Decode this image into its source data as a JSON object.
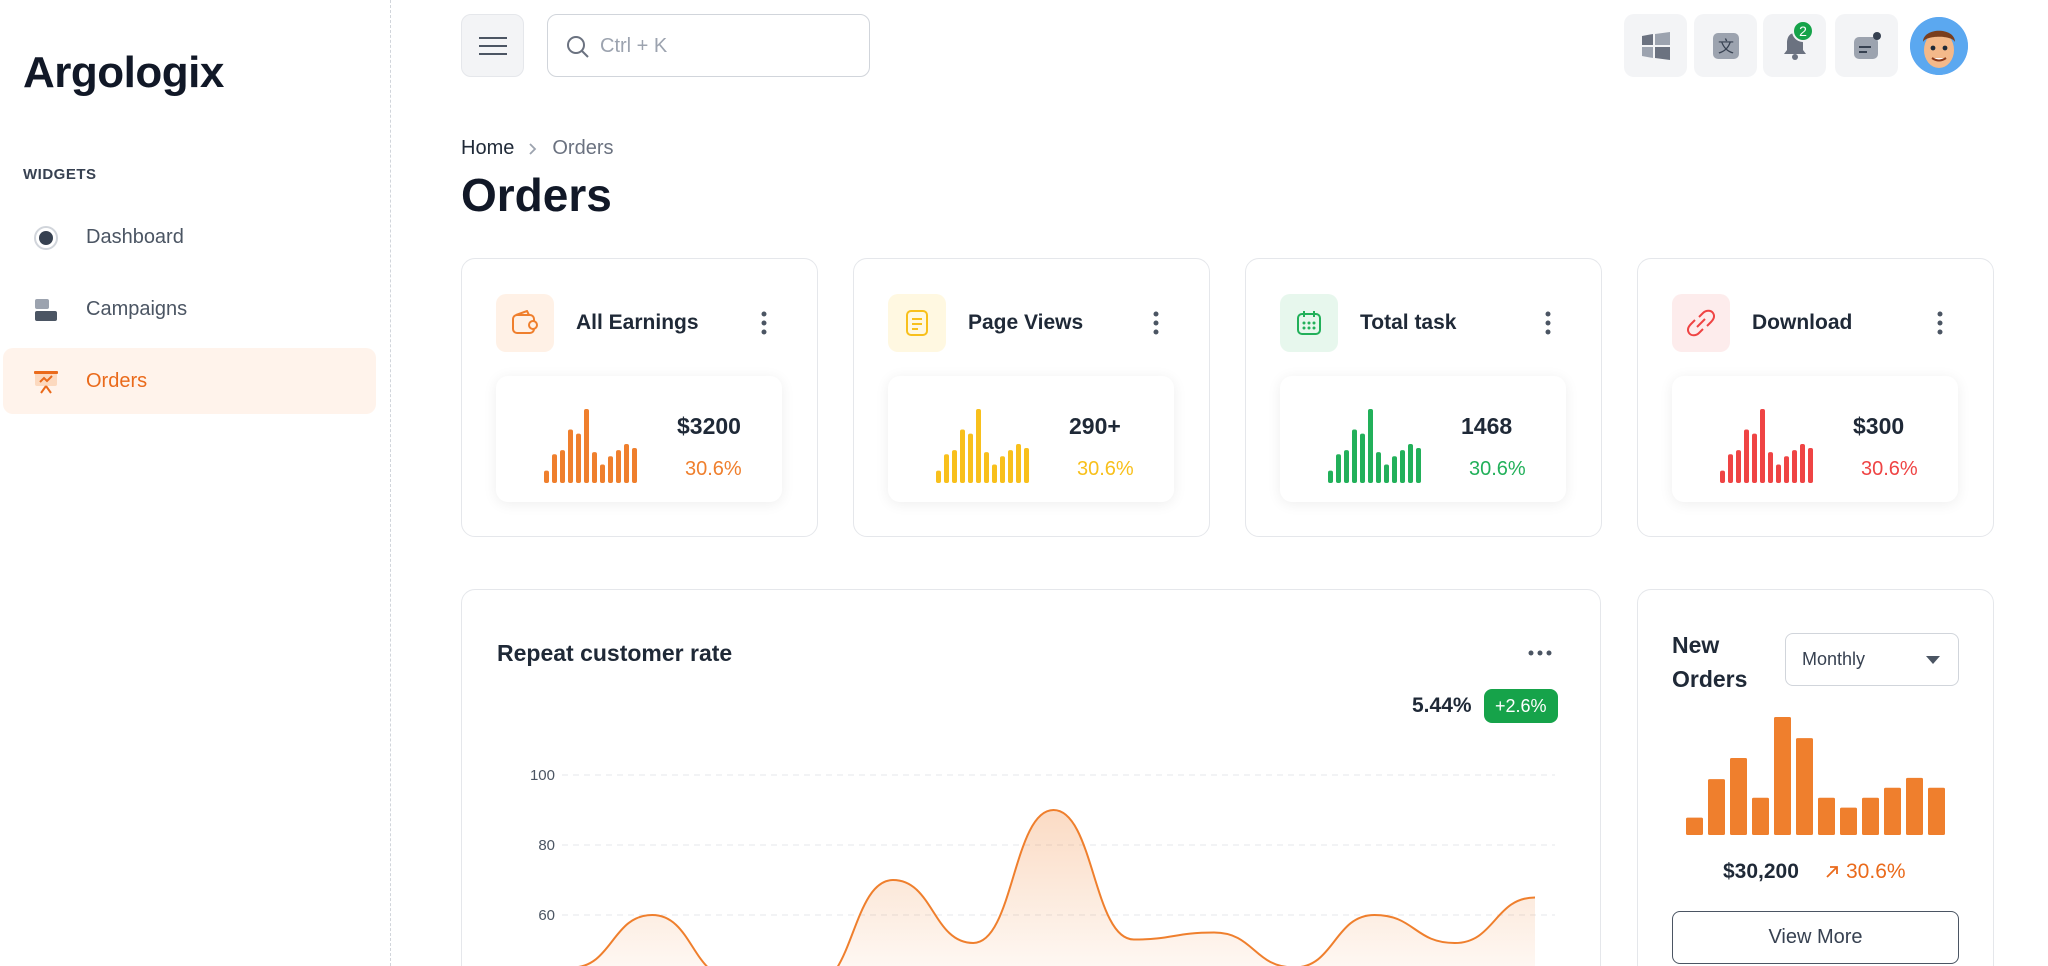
{
  "brand": {
    "name": "Argologix"
  },
  "sidebar": {
    "section": "WIDGETS",
    "items": [
      {
        "label": "Dashboard",
        "icon": "radio-icon",
        "active": false
      },
      {
        "label": "Campaigns",
        "icon": "layers-icon",
        "active": false
      },
      {
        "label": "Orders",
        "icon": "presentation-icon",
        "active": true
      }
    ]
  },
  "topbar": {
    "search_placeholder": "Ctrl + K",
    "notification_count": "2",
    "icons": [
      "windows-icon",
      "translate-icon",
      "bell-icon",
      "message-icon",
      "avatar"
    ]
  },
  "breadcrumb": {
    "home": "Home",
    "current": "Orders"
  },
  "page": {
    "title": "Orders"
  },
  "stats": [
    {
      "title": "All Earnings",
      "value": "$3200",
      "pct": "30.6%",
      "color": "#ef7f2d",
      "bg": "#fff1e6",
      "icon": "wallet-icon",
      "bars": [
        6,
        14,
        16,
        26,
        24,
        36,
        15,
        9,
        13,
        16,
        19,
        17
      ]
    },
    {
      "title": "Page Views",
      "value": "290+",
      "pct": "30.6%",
      "color": "#f8c01c",
      "bg": "#fff8e1",
      "icon": "document-icon",
      "bars": [
        6,
        14,
        16,
        26,
        24,
        36,
        15,
        9,
        13,
        16,
        19,
        17
      ]
    },
    {
      "title": "Total task",
      "value": "1468",
      "pct": "30.6%",
      "color": "#22b05a",
      "bg": "#e7f7ed",
      "icon": "calendar-icon",
      "bars": [
        6,
        14,
        16,
        26,
        24,
        36,
        15,
        9,
        13,
        16,
        19,
        17
      ]
    },
    {
      "title": "Download",
      "value": "$300",
      "pct": "30.6%",
      "color": "#ef4444",
      "bg": "#fdecec",
      "icon": "link-icon",
      "bars": [
        6,
        14,
        16,
        26,
        24,
        36,
        15,
        9,
        13,
        16,
        19,
        17
      ]
    }
  ],
  "repeat_rate": {
    "title": "Repeat customer rate",
    "value": "5.44%",
    "change": "+2.6%",
    "accent": "#ef7f2d"
  },
  "new_orders": {
    "title": "New Orders",
    "period": "Monthly",
    "value": "$30,200",
    "pct": "30.6%",
    "button": "View More",
    "accent": "#ef7f2d",
    "bars": [
      14,
      45,
      62,
      30,
      95,
      78,
      30,
      22,
      30,
      38,
      46,
      38
    ]
  },
  "chart_data": {
    "type": "area",
    "title": "Repeat customer rate",
    "xlabel": "",
    "ylabel": "",
    "y_ticks": [
      60,
      80,
      100
    ],
    "ylim": [
      40,
      100
    ],
    "grid": true,
    "series": [
      {
        "values": [
          45,
          60,
          42,
          40,
          70,
          52,
          90,
          53,
          55,
          45,
          60,
          52,
          65
        ]
      }
    ]
  }
}
